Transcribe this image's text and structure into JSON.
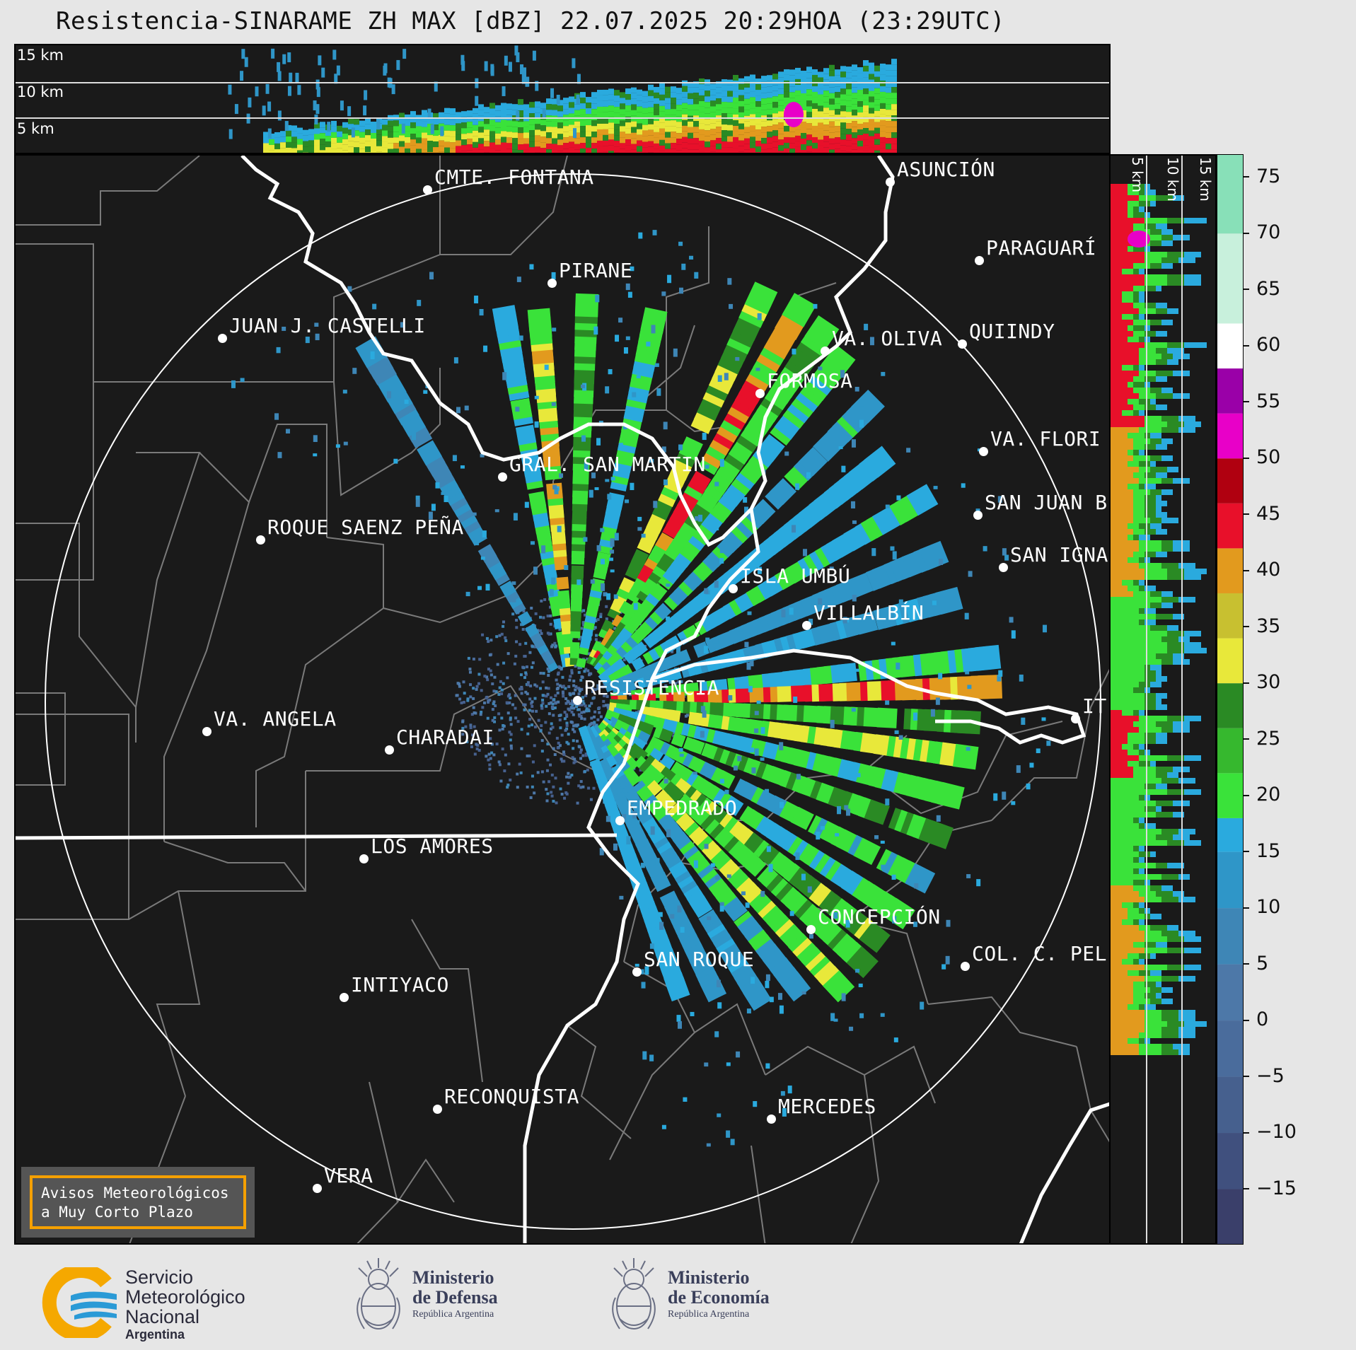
{
  "title": "Resistencia-SINARAME ZH MAX [dBZ] 22.07.2025 20:29HOA (23:29UTC)",
  "top_panel": {
    "height_labels": [
      "15 km",
      "10 km",
      "5 km"
    ]
  },
  "side_panel": {
    "height_labels": [
      "5 km",
      "10 km",
      "15 km"
    ]
  },
  "colorbar": {
    "unit": "dBZ",
    "ticks": [
      "75",
      "70",
      "65",
      "60",
      "55",
      "50",
      "45",
      "40",
      "35",
      "30",
      "25",
      "20",
      "15",
      "10",
      "5",
      "0",
      "−5",
      "−10",
      "−15"
    ],
    "tick_values": [
      75,
      70,
      65,
      60,
      55,
      50,
      45,
      40,
      35,
      30,
      25,
      20,
      15,
      10,
      5,
      0,
      -5,
      -10,
      -15
    ],
    "range": [
      -20,
      77
    ],
    "stops": [
      {
        "from": -20,
        "to": -15,
        "color": "#3a3f6a"
      },
      {
        "from": -15,
        "to": -10,
        "color": "#40507e"
      },
      {
        "from": -10,
        "to": -5,
        "color": "#46608e"
      },
      {
        "from": -5,
        "to": 0,
        "color": "#4a6c9c"
      },
      {
        "from": 0,
        "to": 5,
        "color": "#4d78a8"
      },
      {
        "from": 5,
        "to": 10,
        "color": "#3e86b6"
      },
      {
        "from": 10,
        "to": 15,
        "color": "#2f96c8"
      },
      {
        "from": 15,
        "to": 18,
        "color": "#2aaade"
      },
      {
        "from": 18,
        "to": 22,
        "color": "#3ae23a"
      },
      {
        "from": 22,
        "to": 26,
        "color": "#36b82e"
      },
      {
        "from": 26,
        "to": 30,
        "color": "#2a8a24"
      },
      {
        "from": 30,
        "to": 34,
        "color": "#e8e83a"
      },
      {
        "from": 34,
        "to": 38,
        "color": "#c8c030"
      },
      {
        "from": 38,
        "to": 42,
        "color": "#e29a1e"
      },
      {
        "from": 42,
        "to": 46,
        "color": "#e8102a"
      },
      {
        "from": 46,
        "to": 50,
        "color": "#b00010"
      },
      {
        "from": 50,
        "to": 54,
        "color": "#e800c8"
      },
      {
        "from": 54,
        "to": 58,
        "color": "#9a00a8"
      },
      {
        "from": 58,
        "to": 62,
        "color": "#ffffff"
      },
      {
        "from": 62,
        "to": 70,
        "color": "#c8f0dc"
      },
      {
        "from": 70,
        "to": 77,
        "color": "#88e0b8"
      }
    ]
  },
  "cities": [
    {
      "name": "CMTE. FONTANA"
    },
    {
      "name": "ASUNCIÓN"
    },
    {
      "name": "PARAGUARÍ"
    },
    {
      "name": "PIRANE"
    },
    {
      "name": "JUAN J. CASTELLI"
    },
    {
      "name": "VA. OLIVA"
    },
    {
      "name": "QUIINDY"
    },
    {
      "name": "FORMOSA"
    },
    {
      "name": "VA. FLORI"
    },
    {
      "name": "GRAL. SAN MARTIN"
    },
    {
      "name": "SAN JUAN B"
    },
    {
      "name": "ROQUE SAENZ PEÑA"
    },
    {
      "name": "SAN IGNA"
    },
    {
      "name": "ISLA UMBÚ"
    },
    {
      "name": "VILLALBÍN"
    },
    {
      "name": "RESISTENCIA"
    },
    {
      "name": "VA. ANGELA"
    },
    {
      "name": "CHARADAI"
    },
    {
      "name": "IT"
    },
    {
      "name": "EMPEDRADO"
    },
    {
      "name": "LOS AMORES"
    },
    {
      "name": "CONCEPCIÓN"
    },
    {
      "name": "SAN ROQUE"
    },
    {
      "name": "COL. C. PEL"
    },
    {
      "name": "INTIYACO"
    },
    {
      "name": "RECONQUISTA"
    },
    {
      "name": "MERCEDES"
    },
    {
      "name": "VERA"
    }
  ],
  "notice": {
    "line1": "Avisos Meteorológicos",
    "line2": "a Muy Corto Plazo"
  },
  "footer": {
    "smn": {
      "line1": "Servicio",
      "line2": "Meteorológico",
      "line3": "Nacional",
      "line4": "Argentina"
    },
    "defensa": {
      "line1": "Ministerio",
      "line2": "de Defensa",
      "line3": "República Argentina"
    },
    "economia": {
      "line1": "Ministerio",
      "line2": "de Economía",
      "line3": "República Argentina"
    }
  }
}
